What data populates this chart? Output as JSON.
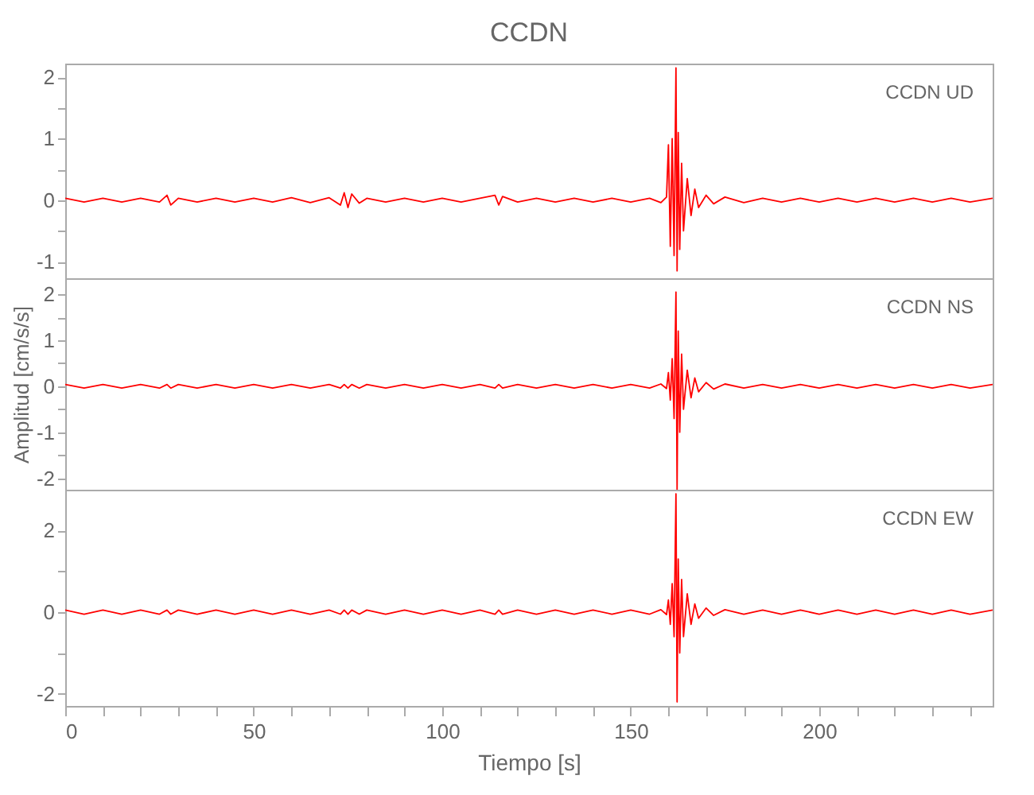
{
  "chart_data": [
    {
      "type": "line",
      "title": "CCDN",
      "annotations": [
        "CCDN UD"
      ],
      "tick_labels": "y",
      "grid": false,
      "marker": "none",
      "x": [
        0,
        5,
        10,
        15,
        20,
        25,
        27,
        28,
        30,
        35,
        40,
        45,
        50,
        55,
        60,
        65,
        70,
        73,
        74,
        75,
        76,
        78,
        80,
        85,
        90,
        95,
        100,
        105,
        110,
        114,
        115,
        116,
        120,
        125,
        130,
        135,
        140,
        145,
        150,
        155,
        158,
        159.5,
        160,
        160.5,
        161,
        161.5,
        162,
        162.3,
        162.6,
        163,
        163.5,
        164,
        165,
        166,
        167,
        168,
        170,
        172,
        175,
        180,
        185,
        190,
        195,
        200,
        205,
        210,
        215,
        220,
        225,
        230,
        235,
        240,
        246
      ],
      "series": [
        {
          "color": "#ff0000",
          "values": [
            0.03,
            -0.03,
            0.03,
            -0.03,
            0.03,
            -0.03,
            0.08,
            -0.08,
            0.03,
            -0.03,
            0.03,
            -0.03,
            0.03,
            -0.03,
            0.04,
            -0.04,
            0.04,
            -0.08,
            0.12,
            -0.12,
            0.1,
            -0.05,
            0.03,
            -0.03,
            0.03,
            -0.03,
            0.03,
            -0.03,
            0.03,
            0.08,
            -0.08,
            0.06,
            -0.03,
            0.03,
            -0.03,
            0.03,
            -0.03,
            0.03,
            -0.03,
            0.03,
            -0.04,
            0.05,
            0.9,
            -0.75,
            1.0,
            -0.9,
            2.15,
            -1.15,
            1.1,
            -0.8,
            0.6,
            -0.5,
            0.35,
            -0.25,
            0.18,
            -0.12,
            0.08,
            -0.06,
            0.05,
            -0.04,
            0.03,
            -0.03,
            0.03,
            -0.03,
            0.03,
            -0.03,
            0.03,
            -0.03,
            0.03,
            -0.03,
            0.03,
            -0.03,
            0.03
          ]
        }
      ],
      "xlim": [
        0,
        246
      ],
      "xticks": [
        0,
        {
          "value": 10,
          "label": null
        },
        {
          "value": 20,
          "label": null
        },
        {
          "value": 30,
          "label": null
        },
        {
          "value": 40,
          "label": null
        },
        50,
        {
          "value": 60,
          "label": null
        },
        {
          "value": 70,
          "label": null
        },
        {
          "value": 80,
          "label": null
        },
        {
          "value": 90,
          "label": null
        },
        100,
        {
          "value": 110,
          "label": null
        },
        {
          "value": 120,
          "label": null
        },
        {
          "value": 130,
          "label": null
        },
        {
          "value": 140,
          "label": null
        },
        150,
        {
          "value": 160,
          "label": null
        },
        {
          "value": 170,
          "label": null
        },
        {
          "value": 180,
          "label": null
        },
        {
          "value": 190,
          "label": null
        },
        200,
        {
          "value": 210,
          "label": null
        },
        {
          "value": 220,
          "label": null
        },
        {
          "value": 230,
          "label": null
        },
        {
          "value": 240,
          "label": null
        }
      ],
      "ylim": [
        -1.27,
        2.22
      ],
      "yticks": [
        -1,
        {
          "value": -0.5,
          "label": null
        },
        0,
        {
          "value": 0.5,
          "label": null
        },
        1,
        {
          "value": 1.5,
          "label": null
        },
        2
      ]
    },
    {
      "type": "line",
      "ylabel": "Amplitud [cm/s/s]",
      "annotations": [
        "CCDN NS"
      ],
      "tick_labels": "y",
      "grid": false,
      "marker": "none",
      "x": [
        0,
        5,
        10,
        15,
        20,
        25,
        27,
        28,
        30,
        35,
        40,
        45,
        50,
        55,
        60,
        65,
        70,
        73,
        74,
        75,
        76,
        78,
        80,
        85,
        90,
        95,
        100,
        105,
        110,
        114,
        115,
        116,
        120,
        125,
        130,
        135,
        140,
        145,
        150,
        155,
        158,
        159.5,
        160,
        160.5,
        161,
        161.5,
        162,
        162.3,
        162.6,
        163,
        163.5,
        164,
        165,
        166,
        167,
        168,
        170,
        172,
        175,
        180,
        185,
        190,
        195,
        200,
        205,
        210,
        215,
        220,
        225,
        230,
        235,
        240,
        246
      ],
      "series": [
        {
          "color": "#ff0000",
          "values": [
            0.04,
            -0.04,
            0.04,
            -0.04,
            0.04,
            -0.04,
            0.04,
            -0.04,
            0.04,
            -0.04,
            0.04,
            -0.04,
            0.04,
            -0.04,
            0.04,
            -0.04,
            0.04,
            -0.04,
            0.04,
            -0.04,
            0.04,
            -0.04,
            0.04,
            -0.04,
            0.04,
            -0.04,
            0.04,
            -0.04,
            0.04,
            -0.04,
            0.04,
            -0.04,
            0.04,
            -0.04,
            0.04,
            -0.04,
            0.04,
            -0.04,
            0.04,
            -0.04,
            0.05,
            -0.05,
            0.3,
            -0.3,
            0.6,
            -0.7,
            2.05,
            -2.25,
            1.2,
            -1.0,
            0.7,
            -0.5,
            0.35,
            -0.25,
            0.18,
            -0.12,
            0.08,
            -0.06,
            0.05,
            -0.04,
            0.04,
            -0.04,
            0.04,
            -0.04,
            0.04,
            -0.04,
            0.04,
            -0.04,
            0.04,
            -0.04,
            0.04,
            -0.04,
            0.04
          ]
        }
      ],
      "xlim": [
        0,
        246
      ],
      "xticks": [
        0,
        {
          "value": 10,
          "label": null
        },
        {
          "value": 20,
          "label": null
        },
        {
          "value": 30,
          "label": null
        },
        {
          "value": 40,
          "label": null
        },
        50,
        {
          "value": 60,
          "label": null
        },
        {
          "value": 70,
          "label": null
        },
        {
          "value": 80,
          "label": null
        },
        {
          "value": 90,
          "label": null
        },
        100,
        {
          "value": 110,
          "label": null
        },
        {
          "value": 120,
          "label": null
        },
        {
          "value": 130,
          "label": null
        },
        {
          "value": 140,
          "label": null
        },
        150,
        {
          "value": 160,
          "label": null
        },
        {
          "value": 170,
          "label": null
        },
        {
          "value": 180,
          "label": null
        },
        {
          "value": 190,
          "label": null
        },
        200,
        {
          "value": 210,
          "label": null
        },
        {
          "value": 220,
          "label": null
        },
        {
          "value": 230,
          "label": null
        },
        {
          "value": 240,
          "label": null
        }
      ],
      "ylim": [
        -2.25,
        2.35
      ],
      "yticks": [
        -2,
        {
          "value": -1.5,
          "label": null
        },
        -1,
        {
          "value": -0.5,
          "label": null
        },
        0,
        {
          "value": 0.5,
          "label": null
        },
        1,
        {
          "value": 1.5,
          "label": null
        },
        2
      ]
    },
    {
      "type": "line",
      "xlabel": "Tiempo [s]",
      "annotations": [
        "CCDN EW"
      ],
      "grid": false,
      "marker": "none",
      "x": [
        0,
        5,
        10,
        15,
        20,
        25,
        27,
        28,
        30,
        35,
        40,
        45,
        50,
        55,
        60,
        65,
        70,
        73,
        74,
        75,
        76,
        78,
        80,
        85,
        90,
        95,
        100,
        105,
        110,
        114,
        115,
        116,
        120,
        125,
        130,
        135,
        140,
        145,
        150,
        155,
        158,
        159.5,
        160,
        160.5,
        161,
        161.5,
        162,
        162.3,
        162.6,
        163,
        163.5,
        164,
        165,
        166,
        167,
        168,
        170,
        172,
        175,
        180,
        185,
        190,
        195,
        200,
        205,
        210,
        215,
        220,
        225,
        230,
        235,
        240,
        246
      ],
      "series": [
        {
          "color": "#ff0000",
          "values": [
            0.05,
            -0.05,
            0.05,
            -0.05,
            0.05,
            -0.05,
            0.05,
            -0.05,
            0.05,
            -0.05,
            0.05,
            -0.05,
            0.05,
            -0.05,
            0.05,
            -0.05,
            0.05,
            -0.05,
            0.05,
            -0.05,
            0.05,
            -0.05,
            0.05,
            -0.05,
            0.05,
            -0.05,
            0.05,
            -0.05,
            0.05,
            -0.05,
            0.05,
            -0.05,
            0.05,
            -0.05,
            0.05,
            -0.05,
            0.05,
            -0.05,
            0.05,
            -0.05,
            0.06,
            -0.06,
            0.3,
            -0.3,
            0.7,
            -0.6,
            2.9,
            -2.2,
            1.3,
            -1.0,
            0.8,
            -0.6,
            0.45,
            -0.3,
            0.2,
            -0.15,
            0.1,
            -0.08,
            0.06,
            -0.05,
            0.05,
            -0.05,
            0.05,
            -0.05,
            0.05,
            -0.05,
            0.05,
            -0.05,
            0.05,
            -0.05,
            0.05,
            -0.05,
            0.05
          ]
        }
      ],
      "xlim": [
        0,
        246
      ],
      "xticks": [
        0,
        {
          "value": 10,
          "label": null
        },
        {
          "value": 20,
          "label": null
        },
        {
          "value": 30,
          "label": null
        },
        {
          "value": 40,
          "label": null
        },
        50,
        {
          "value": 60,
          "label": null
        },
        {
          "value": 70,
          "label": null
        },
        {
          "value": 80,
          "label": null
        },
        {
          "value": 90,
          "label": null
        },
        100,
        {
          "value": 110,
          "label": null
        },
        {
          "value": 120,
          "label": null
        },
        {
          "value": 130,
          "label": null
        },
        {
          "value": 140,
          "label": null
        },
        150,
        {
          "value": 160,
          "label": null
        },
        {
          "value": 170,
          "label": null
        },
        {
          "value": 180,
          "label": null
        },
        {
          "value": 190,
          "label": null
        },
        200,
        {
          "value": 210,
          "label": null
        },
        {
          "value": 220,
          "label": null
        },
        {
          "value": 230,
          "label": null
        },
        {
          "value": 240,
          "label": null
        }
      ],
      "ylim": [
        -2.3,
        3.0
      ],
      "yticks": [
        -2,
        {
          "value": -1,
          "label": null
        },
        0,
        {
          "value": 1,
          "label": null
        },
        2
      ]
    }
  ]
}
